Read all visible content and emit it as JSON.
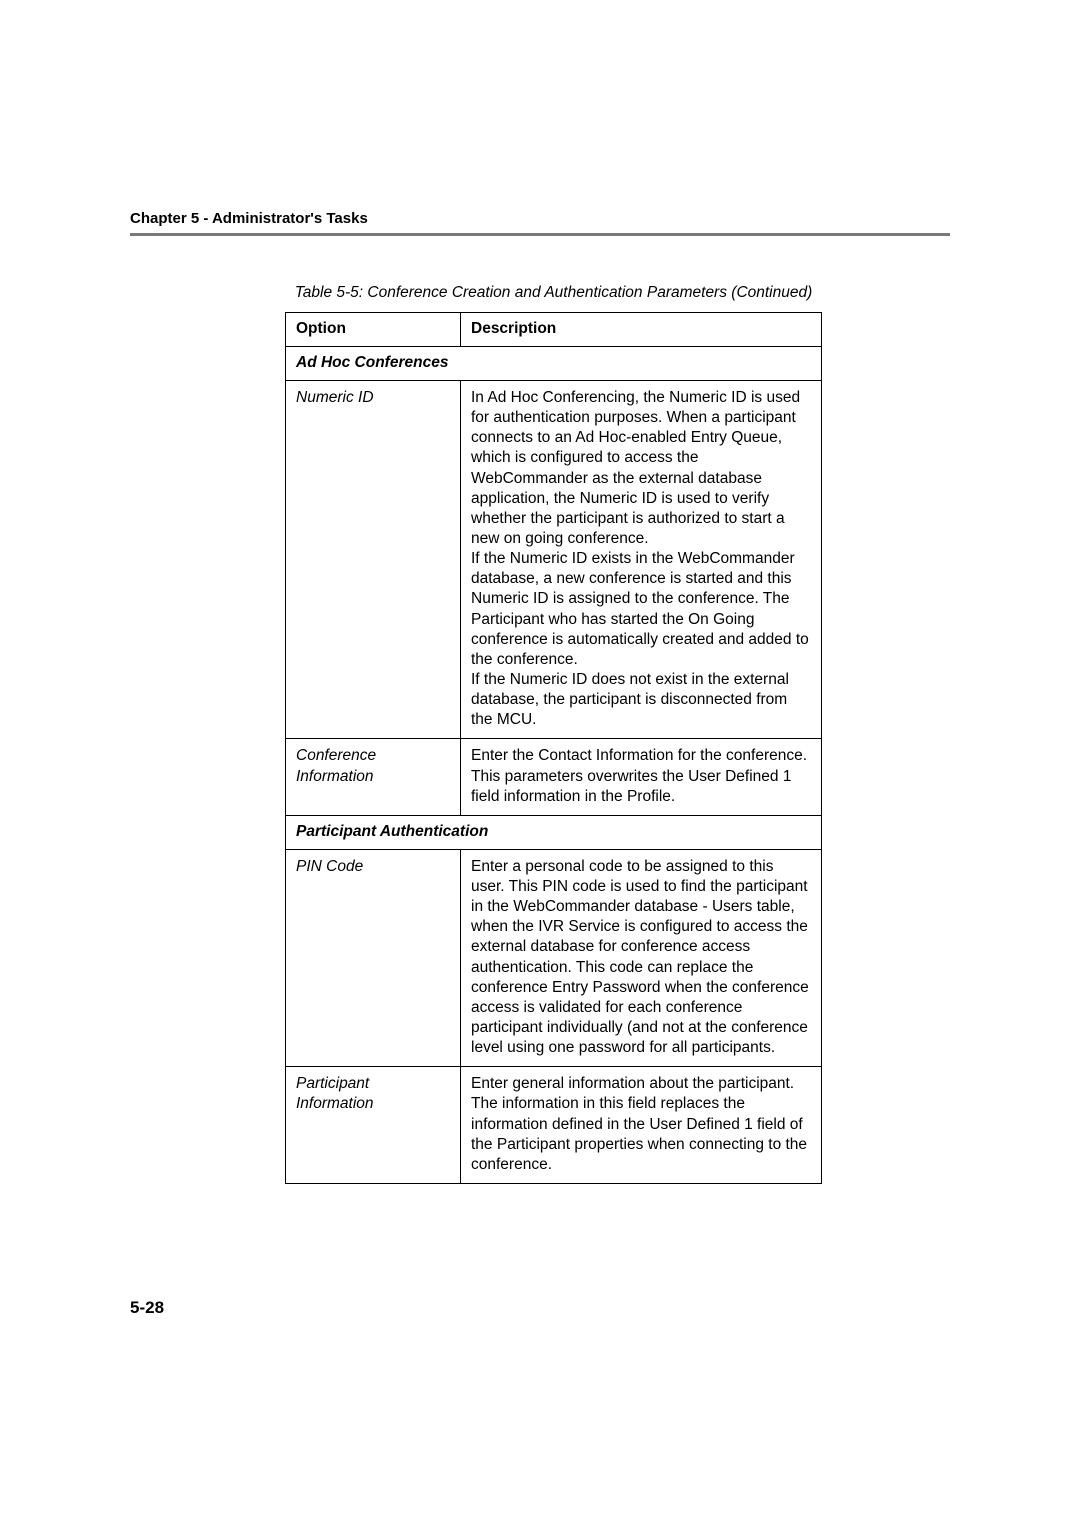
{
  "chapterHeader": "Chapter 5 - Administrator's Tasks",
  "tableCaption": "Table 5-5: Conference Creation and Authentication Parameters (Continued)",
  "columns": {
    "option": "Option",
    "description": "Description"
  },
  "sections": [
    {
      "title": "Ad Hoc Conferences",
      "rows": [
        {
          "option": "Numeric ID",
          "descParas": [
            "In Ad Hoc Conferencing, the Numeric ID is used for authentication purposes. When a participant connects to an Ad Hoc-enabled Entry Queue, which is configured to access the WebCommander as the external database application, the Numeric ID is used to verify whether the participant is authorized to start a new on going conference.",
            "If the Numeric ID exists in the WebCommander database, a new conference is started and this Numeric ID is assigned to the conference. The Participant who has started the On Going conference is automatically created and added to the conference.",
            "If the Numeric ID does not exist in the external database, the participant is disconnected from the MCU."
          ]
        },
        {
          "option": "Conference Information",
          "descParas": [
            "Enter the Contact Information for the conference. This parameters overwrites the User Defined 1 field information in the Profile."
          ]
        }
      ]
    },
    {
      "title": "Participant Authentication",
      "rows": [
        {
          "option": "PIN Code",
          "descParas": [
            "Enter a personal code to be assigned to this user. This PIN code is used to find the participant in the WebCommander database - Users table, when the IVR Service is configured to access the external database for conference access authentication. This code can replace the conference Entry Password when the conference access is validated for each conference participant individually (and not at the conference level using one password for all participants."
          ]
        },
        {
          "option": "Participant Information",
          "descParas": [
            "Enter general information about the participant. The information in this field replaces the information defined in the User Defined 1 field of the Participant properties when connecting to the conference."
          ]
        }
      ]
    }
  ],
  "pageNumber": "5-28"
}
